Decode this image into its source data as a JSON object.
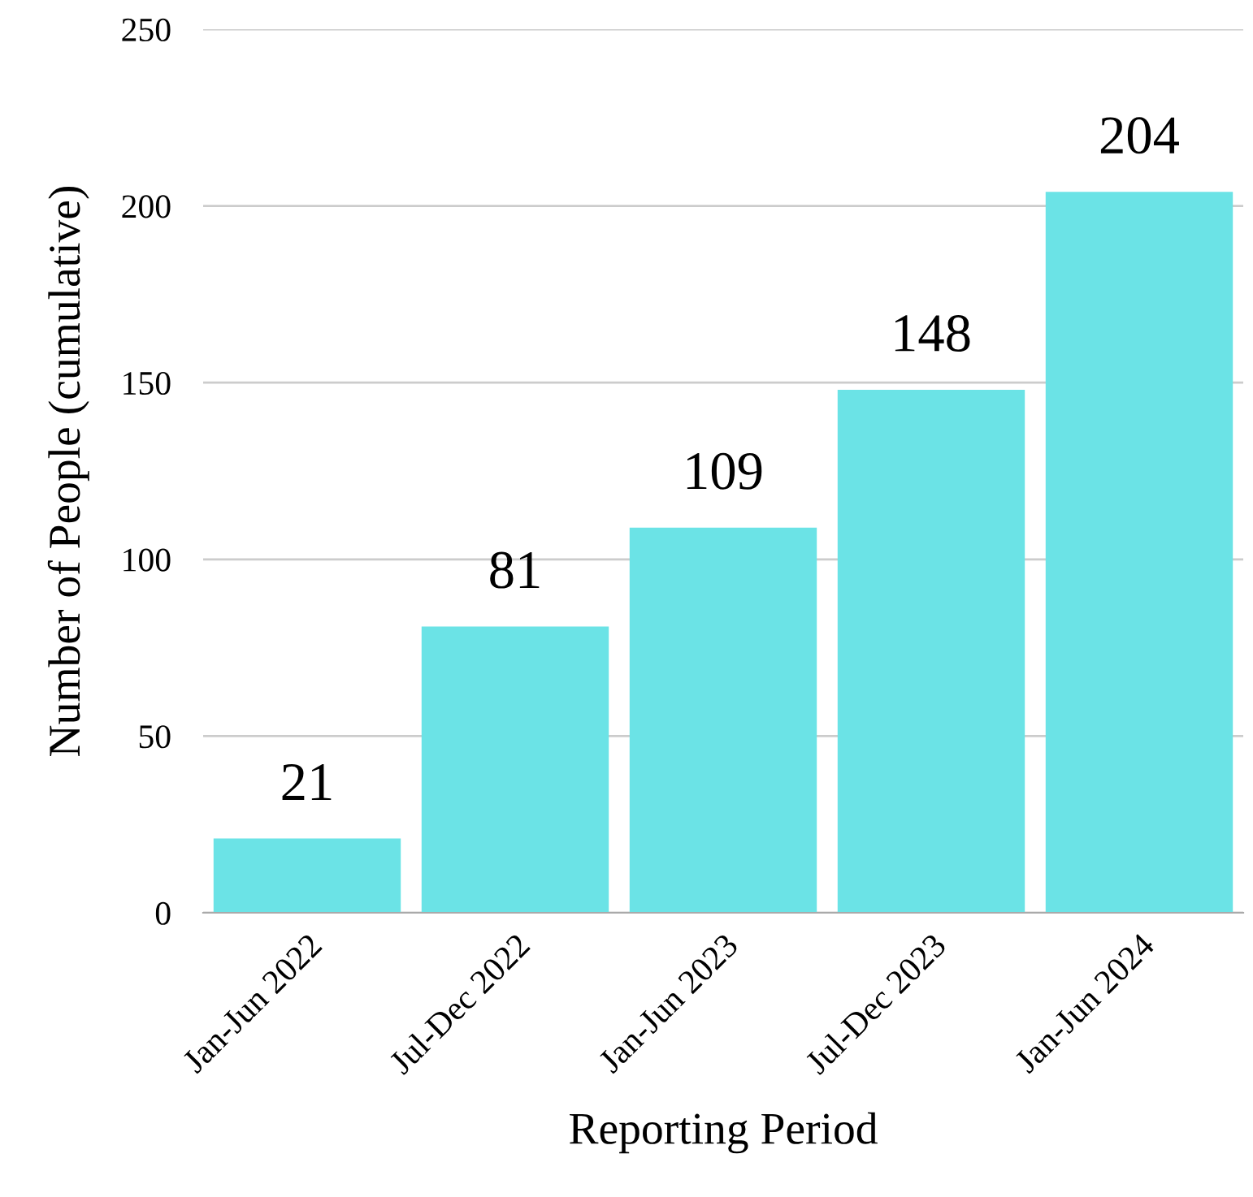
{
  "chart_data": {
    "type": "bar",
    "xlabel": "Reporting Period",
    "ylabel": "Number of People (cumulative)",
    "categories": [
      "Jan-Jun 2022",
      "Jul-Dec 2022",
      "Jan-Jun 2023",
      "Jul-Dec 2023",
      "Jan-Jun 2024"
    ],
    "values": [
      21,
      81,
      109,
      148,
      204
    ],
    "color": "#6be3e6",
    "ylim": [
      0,
      250
    ],
    "yticks": [
      0,
      50,
      100,
      150,
      200,
      250
    ],
    "grid": "y",
    "data_labels": true
  }
}
